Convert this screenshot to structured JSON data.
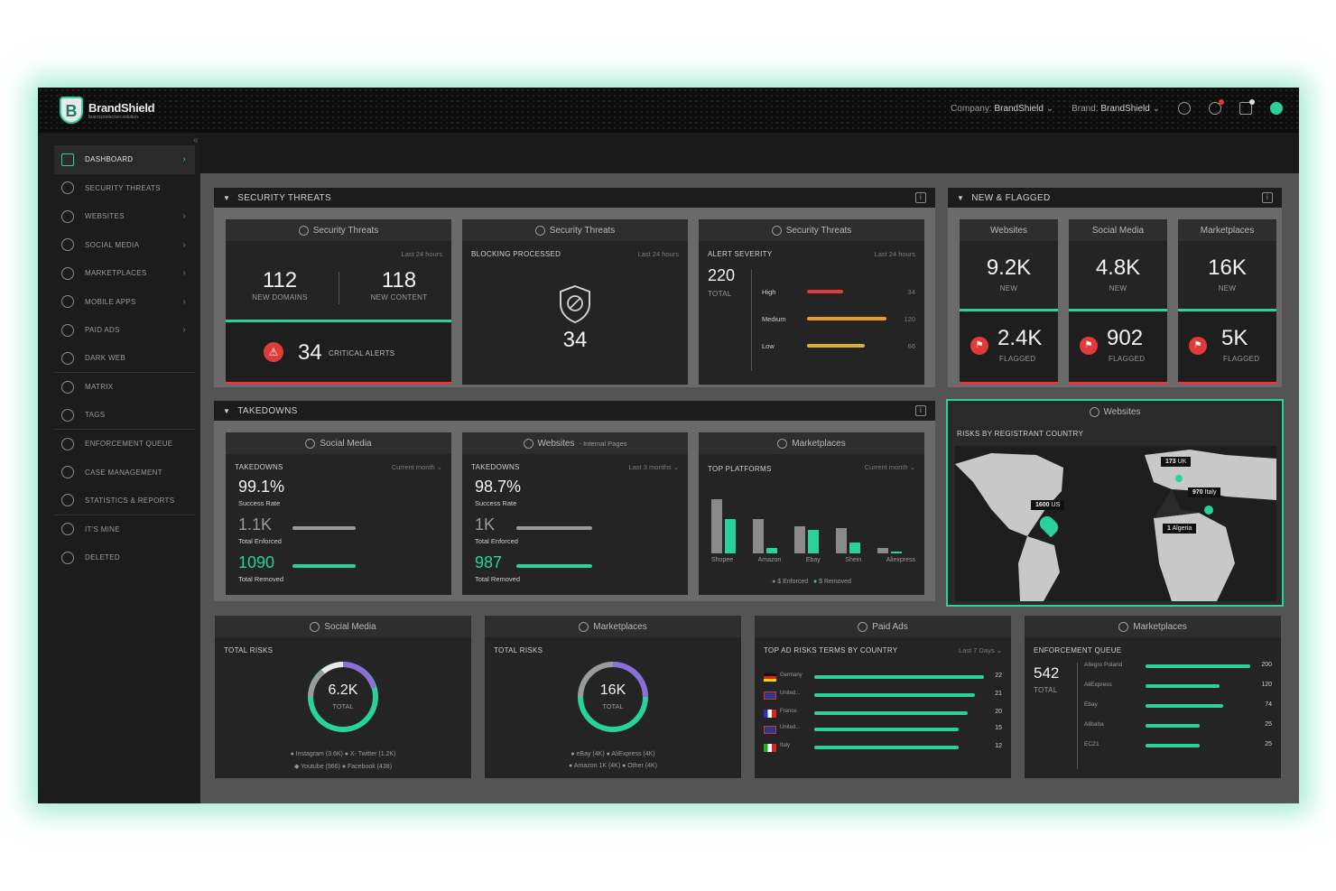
{
  "brand": {
    "name": "BrandShield",
    "tagline": "brand protection solution",
    "logo_letter": "B"
  },
  "header": {
    "company_label": "Company:",
    "company_value": "BrandShield",
    "brand_label": "Brand:",
    "brand_value": "BrandShield"
  },
  "sidebar": {
    "items": [
      {
        "label": "DASHBOARD",
        "icon": "grid-icon"
      },
      {
        "label": "SECURITY THREATS",
        "icon": "shield-icon"
      },
      {
        "label": "WEBSITES",
        "icon": "globe-icon"
      },
      {
        "label": "SOCIAL MEDIA",
        "icon": "social-icon"
      },
      {
        "label": "MARKETPLACES",
        "icon": "store-icon"
      },
      {
        "label": "MOBILE APPS",
        "icon": "phone-icon"
      },
      {
        "label": "PAID ADS",
        "icon": "ads-icon"
      },
      {
        "label": "DARK WEB",
        "icon": "spy-icon"
      },
      {
        "label": "MATRIX",
        "icon": "matrix-icon"
      },
      {
        "label": "TAGS",
        "icon": "tag-icon"
      },
      {
        "label": "ENFORCEMENT QUEUE",
        "icon": "queue-icon"
      },
      {
        "label": "CASE MANAGEMENT",
        "icon": "case-icon"
      },
      {
        "label": "STATISTICS & REPORTS",
        "icon": "stats-icon"
      },
      {
        "label": "IT'S MINE",
        "icon": "check-icon"
      },
      {
        "label": "DELETED",
        "icon": "trash-icon"
      }
    ]
  },
  "security": {
    "title": "SECURITY THREATS",
    "card1": {
      "head": "Security Threats",
      "period": "Last 24 hours",
      "domains": "112",
      "domains_label": "NEW DOMAINS",
      "content": "118",
      "content_label": "NEW CONTENT",
      "alerts": "34",
      "alerts_label": "CRITICAL ALERTS"
    },
    "card2": {
      "head": "Security Threats",
      "sub": "BLOCKING PROCESSED",
      "period": "Last 24 hours",
      "value": "34"
    },
    "card3": {
      "head": "Security Threats",
      "sub": "ALERT SEVERITY",
      "period": "Last 24 hours",
      "total": "220",
      "total_label": "TOTAL",
      "rows": [
        {
          "label": "High",
          "value": "34"
        },
        {
          "label": "Medium",
          "value": "120"
        },
        {
          "label": "Low",
          "value": "66"
        }
      ]
    }
  },
  "flagged": {
    "title": "NEW & FLAGGED",
    "cards": [
      {
        "head": "Websites",
        "new": "9.2K",
        "new_label": "NEW",
        "flagged": "2.4K",
        "flagged_label": "FLAGGED"
      },
      {
        "head": "Social Media",
        "new": "4.8K",
        "new_label": "NEW",
        "flagged": "902",
        "flagged_label": "FLAGGED"
      },
      {
        "head": "Marketplaces",
        "new": "16K",
        "new_label": "NEW",
        "flagged": "5K",
        "flagged_label": "FLAGGED"
      }
    ]
  },
  "takedowns": {
    "title": "TAKEDOWNS",
    "social": {
      "head": "Social Media",
      "sub": "TAKEDOWNS",
      "period": "Current month",
      "rate": "99.1%",
      "rate_label": "Success Rate",
      "enforced": "1.1K",
      "enforced_label": "Total Enforced",
      "removed": "1090",
      "removed_label": "Total Removed"
    },
    "web": {
      "head": "Websites",
      "head_suffix": "- Internal Pages",
      "sub": "TAKEDOWNS",
      "period": "Last 3 months",
      "rate": "98.7%",
      "rate_label": "Success Rate",
      "enforced": "1K",
      "enforced_label": "Total Enforced",
      "removed": "987",
      "removed_label": "Total Removed"
    },
    "market": {
      "head": "Marketplaces",
      "sub": "TOP PLATFORMS",
      "period": "Current month",
      "platforms": [
        "Shopee",
        "Amazon",
        "Ebay",
        "Shein",
        "Aliexpress"
      ],
      "legend_enforced": "$ Enforced",
      "legend_removed": "$ Removed"
    }
  },
  "map": {
    "head": "Websites",
    "sub": "RISKS BY REGISTRANT COUNTRY",
    "pins": [
      {
        "value": "1600",
        "country": "US"
      },
      {
        "value": "173",
        "country": "UK"
      },
      {
        "value": "970",
        "country": "Italy"
      },
      {
        "value": "1",
        "country": "Algeria"
      }
    ]
  },
  "bottom": {
    "social": {
      "head": "Social Media",
      "sub": "TOTAL RISKS",
      "value": "6.2K",
      "label": "TOTAL",
      "legend1": "● Instagram (3.6K)  ● X- Twitter (1.2K)",
      "legend2": "◆ Youtube (966)  ● Facebook (438)"
    },
    "market": {
      "head": "Marketplaces",
      "sub": "TOTAL RISKS",
      "value": "16K",
      "label": "TOTAL",
      "legend1": "● eBay (4K)  ● AliExpress (4K)",
      "legend2": "● Amazon 1K (4K)  ● Other (4K)"
    },
    "ads": {
      "head": "Paid Ads",
      "sub": "TOP AD RISKS TERMS BY COUNTRY",
      "period": "Last 7 Days",
      "rows": [
        {
          "label": "Germany",
          "value": "22"
        },
        {
          "label": "United...",
          "value": "21"
        },
        {
          "label": "France",
          "value": "20"
        },
        {
          "label": "United...",
          "value": "15"
        },
        {
          "label": "Italy",
          "value": "12"
        }
      ]
    },
    "queue": {
      "head": "Marketplaces",
      "sub": "ENFORCEMENT QUEUE",
      "total": "542",
      "total_label": "TOTAL",
      "rows": [
        {
          "label": "Allegro Poland",
          "value": "200"
        },
        {
          "label": "AliExpress",
          "value": "120"
        },
        {
          "label": "Ebay",
          "value": "74"
        },
        {
          "label": "Alibaba",
          "value": "25"
        },
        {
          "label": "ECZ1",
          "value": "25"
        }
      ]
    }
  },
  "colors": {
    "accent": "#2ad29b",
    "danger": "#e03a3a",
    "warning": "#e0b22a",
    "orange": "#e89a2a"
  }
}
